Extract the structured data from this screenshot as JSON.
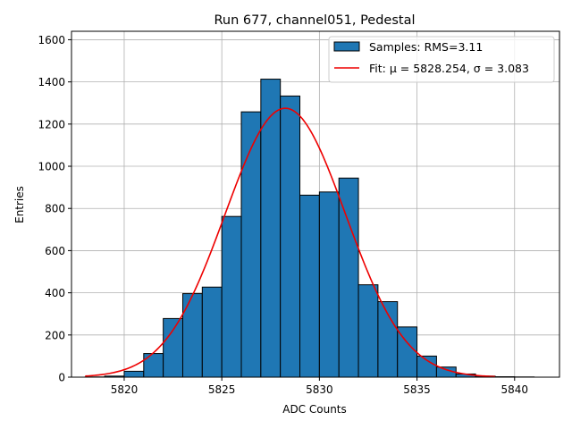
{
  "chart_data": {
    "type": "bar",
    "title": "Run 677, channel051, Pedestal",
    "xlabel": "ADC Counts",
    "ylabel": "Entries",
    "xlim": [
      5817.3,
      5842.3
    ],
    "ylim": [
      0,
      1640
    ],
    "xticks": [
      5820,
      5825,
      5830,
      5835,
      5840
    ],
    "yticks": [
      0,
      200,
      400,
      600,
      800,
      1000,
      1200,
      1400,
      1600
    ],
    "grid": true,
    "legend_position": "top-right",
    "bin_edges": [
      5818,
      5819,
      5820,
      5821,
      5822,
      5823,
      5824,
      5825,
      5826,
      5827,
      5828,
      5829,
      5830,
      5831,
      5832,
      5833,
      5834,
      5835,
      5836,
      5837,
      5838,
      5839,
      5840,
      5841
    ],
    "series": [
      {
        "name": "Samples: RMS=3.11",
        "kind": "histogram",
        "color": "#1f77b4",
        "edgecolor": "#000000",
        "values": [
          1,
          5,
          28,
          112,
          278,
          396,
          427,
          762,
          1258,
          1413,
          1333,
          863,
          878,
          944,
          438,
          358,
          238,
          100,
          48,
          15,
          5,
          2,
          1
        ]
      },
      {
        "name": "Fit: μ = 5828.254, σ = 3.083",
        "kind": "gaussian",
        "color": "#ee0000",
        "mu": 5828.254,
        "sigma": 3.083,
        "amplitude": 1275,
        "x_range": [
          5818,
          5839
        ]
      }
    ]
  }
}
